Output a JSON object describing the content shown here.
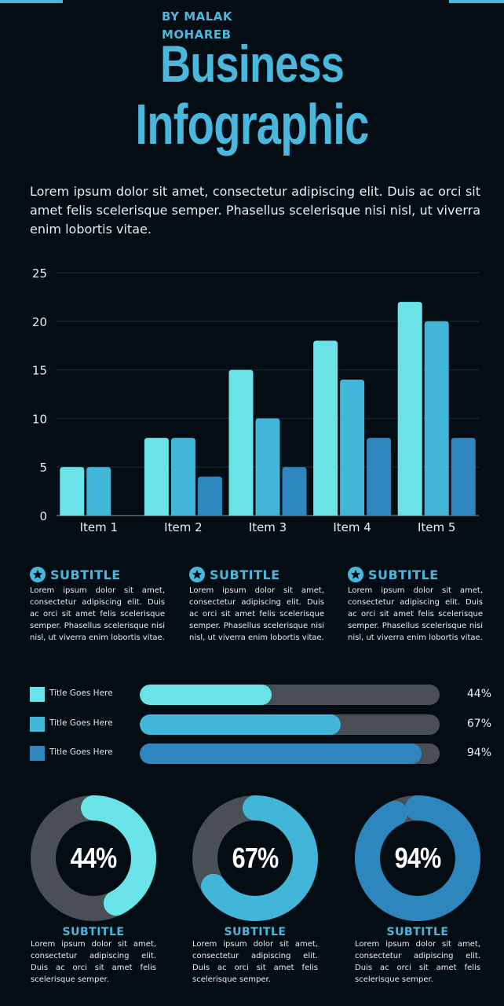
{
  "author": "BY MALAK MOHAREB",
  "title_line1": "Business",
  "title_line2": "Infographic",
  "intro": "Lorem ipsum dolor sit amet, consectetur adipiscing elit. Duis ac orci sit amet felis scelerisque semper. Phasellus scelerisque nisi nisl, ut viverra enim lobortis vitae.",
  "colors": {
    "background": "#050d14",
    "accent": "#4ab7dc",
    "series1": "#6ae3e8",
    "series2": "#42b6d8",
    "series3": "#2e86be",
    "track": "#4a4f55"
  },
  "chart_data": {
    "type": "bar",
    "categories": [
      "Item 1",
      "Item 2",
      "Item 3",
      "Item 4",
      "Item 5"
    ],
    "series": [
      {
        "values": [
          5,
          8,
          15,
          18,
          22
        ],
        "color": "#6ae3e8"
      },
      {
        "values": [
          5,
          8,
          10,
          14,
          20
        ],
        "color": "#42b6d8"
      },
      {
        "values": [
          null,
          4,
          5,
          8,
          8
        ],
        "color": "#2e86be"
      }
    ],
    "ylim": [
      0,
      25
    ],
    "yticks": [
      0,
      5,
      10,
      15,
      20,
      25
    ],
    "grid": true,
    "legend": "none"
  },
  "subtitles": [
    {
      "title": "SUBTITLE",
      "text": "Lorem ipsum dolor sit amet, consectetur adipiscing elit. Duis ac orci sit amet felis scelerisque semper. Phasellus scelerisque nisi nisl, ut viverra enim lobortis vitae.",
      "icon": "star-icon"
    },
    {
      "title": "SUBTITLE",
      "text": "Lorem ipsum dolor sit amet, consectetur adipiscing elit. Duis ac orci sit amet felis scelerisque semper. Phasellus scelerisque nisi nisl, ut viverra enim lobortis vitae.",
      "icon": "star-icon"
    },
    {
      "title": "SUBTITLE",
      "text": "Lorem ipsum dolor sit amet, consectetur adipiscing elit. Duis ac orci sit amet felis scelerisque semper. Phasellus scelerisque nisi nisl, ut viverra enim lobortis vitae.",
      "icon": "star-icon"
    }
  ],
  "progress_bars": [
    {
      "label": "Title Goes Here",
      "value": 44,
      "display": "44%",
      "color": "#6ae3e8"
    },
    {
      "label": "Title Goes Here",
      "value": 67,
      "display": "67%",
      "color": "#42b6d8"
    },
    {
      "label": "Title Goes Here",
      "value": 94,
      "display": "94%",
      "color": "#2e86be"
    }
  ],
  "donuts": [
    {
      "value": 44,
      "display": "44%",
      "color": "#6ae3e8",
      "title": "SUBTITLE",
      "text": "Lorem ipsum dolor sit amet, consectetur adipiscing elit. Duis ac orci sit amet felis scelerisque semper."
    },
    {
      "value": 67,
      "display": "67%",
      "color": "#42b6d8",
      "title": "SUBTITLE",
      "text": "Lorem ipsum dolor sit amet, consectetur adipiscing elit. Duis ac orci sit amet felis scelerisque semper."
    },
    {
      "value": 94,
      "display": "94%",
      "color": "#2e86be",
      "title": "SUBTITLE",
      "text": "Lorem ipsum dolor sit amet, consectetur adipiscing elit. Duis ac orci sit amet felis scelerisque semper."
    }
  ]
}
